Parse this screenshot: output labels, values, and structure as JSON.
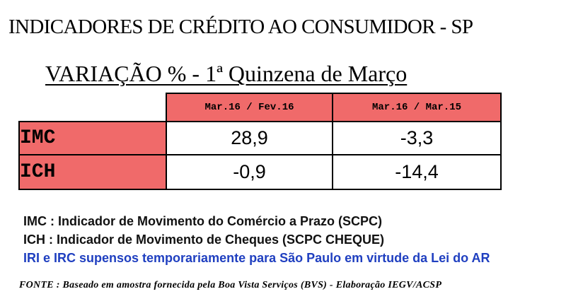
{
  "title": "INDICADORES DE CRÉDITO AO CONSUMIDOR - SP",
  "subtitle": "VARIAÇÃO %  - 1ª Quinzena de Março",
  "table": {
    "columns": [
      "Mar.16 / Fev.16",
      "Mar.16 / Mar.15"
    ],
    "rows": [
      {
        "label": "IMC",
        "values": [
          "28,9",
          "-3,3"
        ]
      },
      {
        "label": "ICH",
        "values": [
          "-0,9",
          "-14,4"
        ]
      }
    ]
  },
  "legend": {
    "imc": "IMC : Indicador de Movimento do Comércio a Prazo (SCPC)",
    "ich": "ICH : Indicador de Movimento de Cheques (SCPC CHEQUE)",
    "note": "IRI e IRC supensos temporariamente para São Paulo em virtude da Lei do AR"
  },
  "source": "FONTE : Baseado em amostra fornecida pela Boa Vista Serviços (BVS) - Elaboração IEGV/ACSP",
  "colors": {
    "header_fill": "#f06a6a",
    "note_text": "#1f3fc0"
  }
}
